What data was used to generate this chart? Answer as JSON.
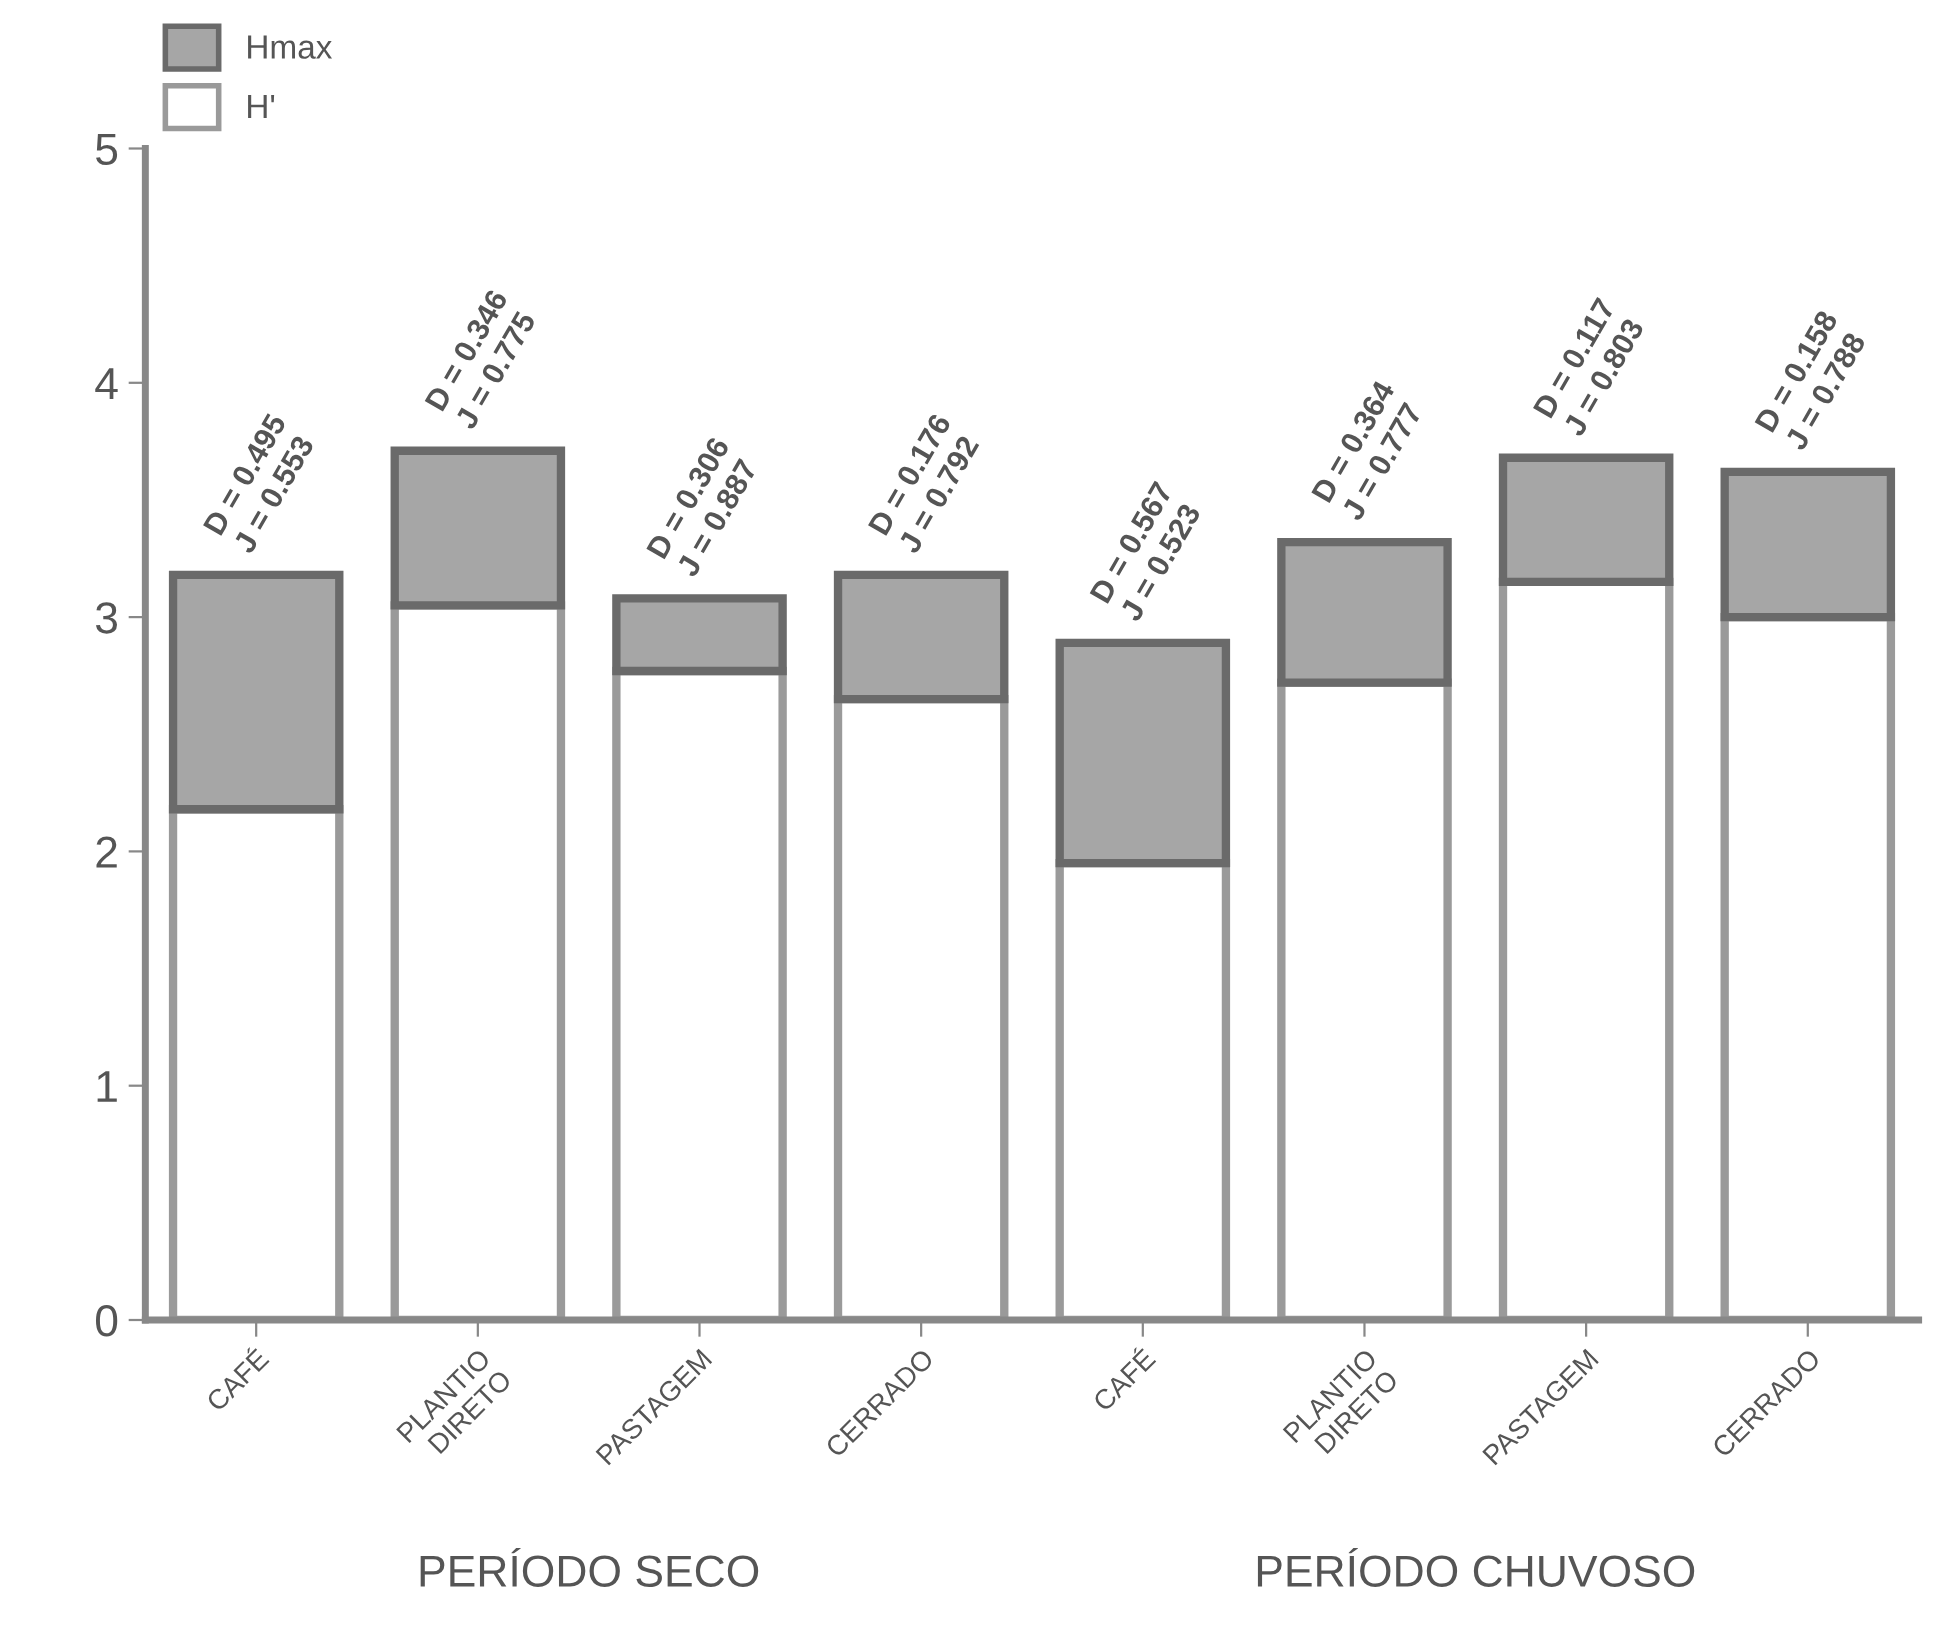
{
  "chart_data": {
    "type": "bar",
    "stacked": true,
    "categories": [
      "CAFÉ",
      "PLANTIO\nDIRETO",
      "PASTAGEM",
      "CERRADO",
      "CAFÉ",
      "PLANTIO\nDIRETO",
      "PASTAGEM",
      "CERRADO"
    ],
    "series": [
      {
        "name": "H'",
        "color": "#ffffff",
        "values": [
          2.18,
          3.05,
          2.77,
          2.65,
          1.95,
          2.72,
          3.15,
          3.0
        ]
      },
      {
        "name": "Hmax",
        "color": "#a6a6a6",
        "values": [
          1.0,
          0.66,
          0.31,
          0.53,
          0.94,
          0.6,
          0.53,
          0.62
        ]
      }
    ],
    "ylim": [
      0,
      5
    ],
    "yticks": [
      0,
      1,
      2,
      3,
      4,
      5
    ],
    "legend": "top left",
    "annotations": [
      "D = 0.495\nJ = 0.553",
      "D = 0.346\nJ = 0.775",
      "D = 0.306\nJ = 0.887",
      "D = 0.176\nJ = 0.792",
      "D = 0.567\nJ = 0.523",
      "D = 0.364\nJ = 0.777",
      "D = 0.117\nJ = 0.803",
      "D = 0.158\nJ = 0.788",
      "PERÍODO SECO",
      "PERÍODO CHUVOSO"
    ]
  }
}
